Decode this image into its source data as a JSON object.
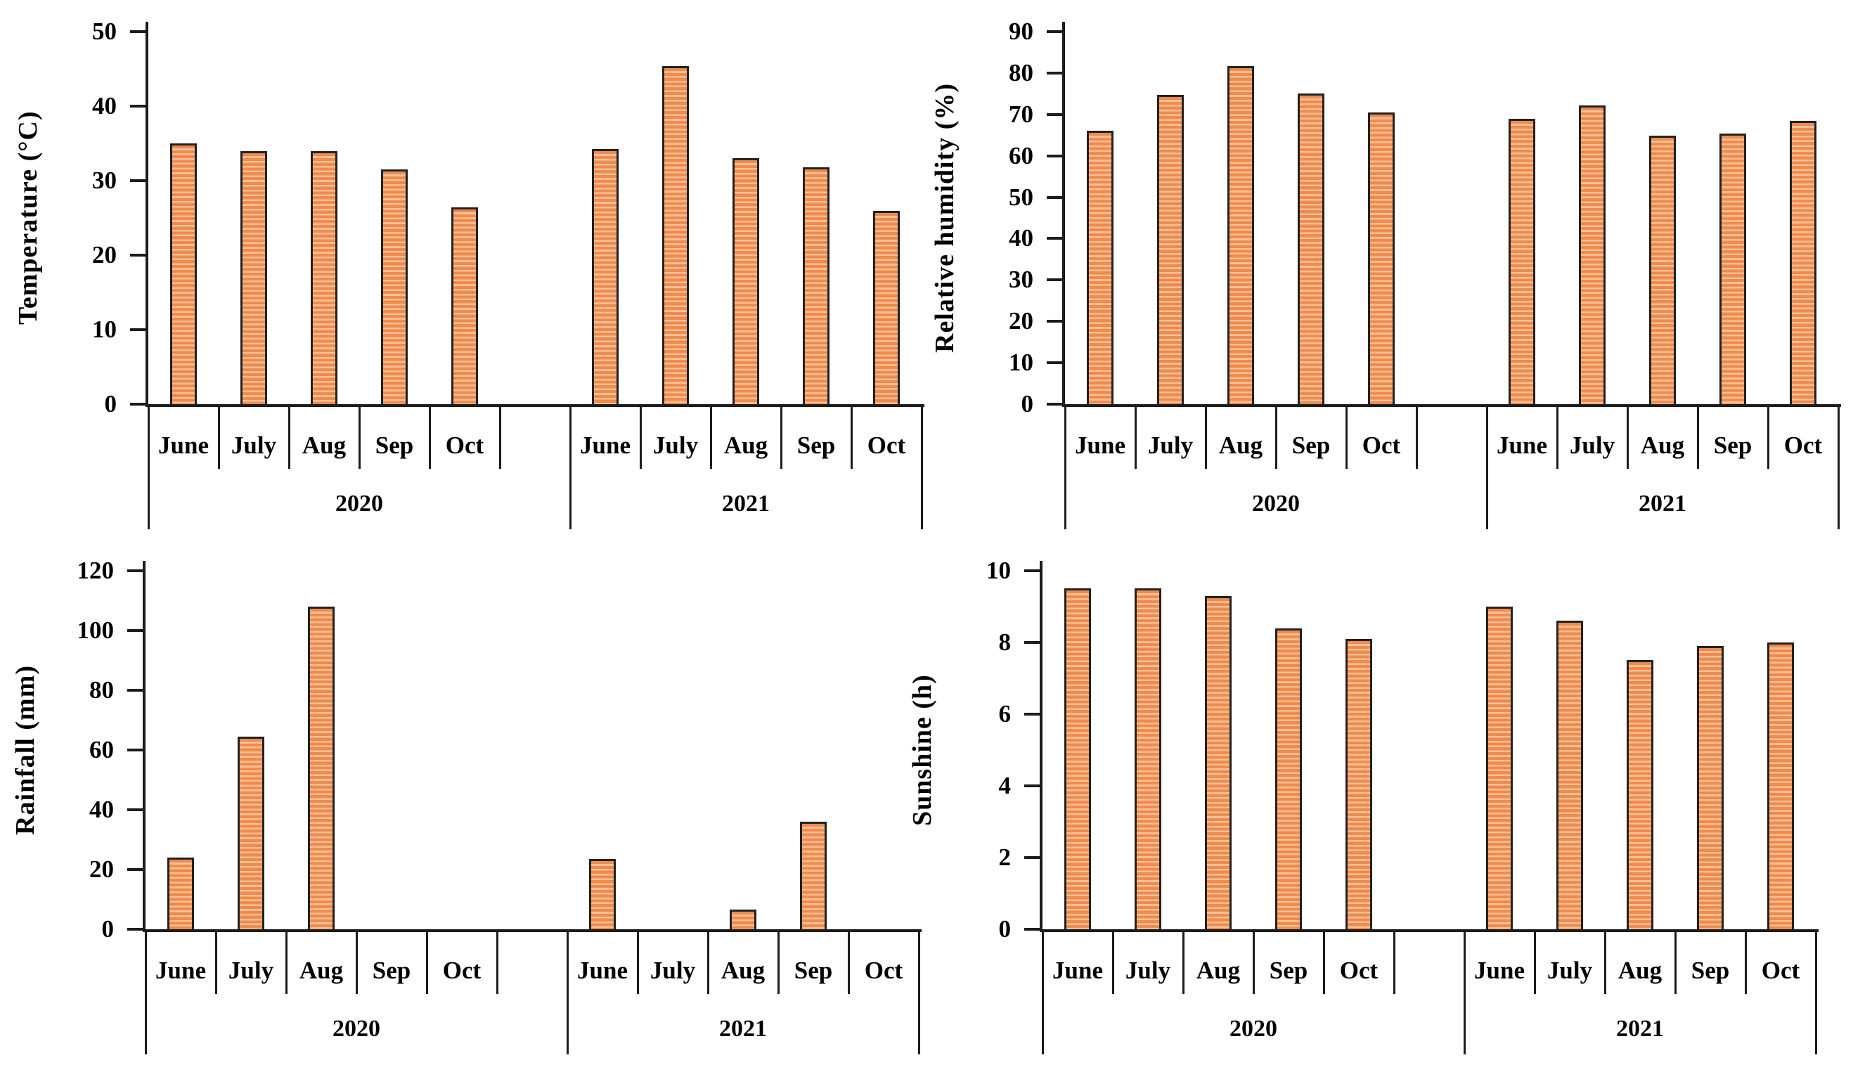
{
  "figure": {
    "background_color": "#FFFFFF",
    "bar_fill_color": "#EF8B4D",
    "bar_stripe_color": "#F7BF97",
    "bar_border_color": "#222222",
    "axis_color": "#1C1C1C",
    "text_color": "#000000",
    "pattern": "horizontal-stripes"
  },
  "labels": {
    "months": [
      "June",
      "July",
      "Aug",
      "Sep",
      "Oct"
    ],
    "years": [
      "2020",
      "2021"
    ]
  },
  "chart_data": [
    {
      "id": "temperature",
      "type": "bar",
      "title": "",
      "ylabel": "Temperature (°C)",
      "xlabel": "",
      "ylim": [
        0,
        50
      ],
      "yticks": [
        0,
        10,
        20,
        30,
        40,
        50
      ],
      "grid": false,
      "legend": false,
      "categories": [
        "June",
        "July",
        "Aug",
        "Sep",
        "Oct"
      ],
      "group_labels": [
        "2020",
        "2021"
      ],
      "series": [
        {
          "name": "2020",
          "values": [
            35,
            34,
            34,
            31.5,
            26.4
          ]
        },
        {
          "name": "2021",
          "values": [
            34.2,
            45.4,
            33,
            31.8,
            25.9
          ]
        }
      ]
    },
    {
      "id": "relative-humidity",
      "type": "bar",
      "title": "",
      "ylabel": "Relative humidity (%)",
      "xlabel": "",
      "ylim": [
        0,
        90
      ],
      "yticks": [
        0,
        10,
        20,
        30,
        40,
        50,
        60,
        70,
        80,
        90
      ],
      "grid": false,
      "legend": false,
      "categories": [
        "June",
        "July",
        "Aug",
        "Sep",
        "Oct"
      ],
      "group_labels": [
        "2020",
        "2021"
      ],
      "series": [
        {
          "name": "2020",
          "values": [
            66,
            74.7,
            81.7,
            75,
            70.4
          ]
        },
        {
          "name": "2021",
          "values": [
            69,
            72.2,
            64.8,
            65.4,
            68.5
          ]
        }
      ]
    },
    {
      "id": "rainfall",
      "type": "bar",
      "title": "",
      "ylabel": "Rainfall (mm)",
      "xlabel": "",
      "ylim": [
        0,
        120
      ],
      "yticks": [
        0,
        20,
        40,
        60,
        80,
        100,
        120
      ],
      "grid": false,
      "legend": false,
      "categories": [
        "June",
        "July",
        "Aug",
        "Sep",
        "Oct"
      ],
      "group_labels": [
        "2020",
        "2021"
      ],
      "series": [
        {
          "name": "2020",
          "values": [
            24,
            64.5,
            108,
            0,
            0
          ]
        },
        {
          "name": "2021",
          "values": [
            23.5,
            0,
            6.5,
            36,
            0
          ]
        }
      ]
    },
    {
      "id": "sunshine",
      "type": "bar",
      "title": "",
      "ylabel": "Sunshine (h)",
      "xlabel": "",
      "ylim": [
        0,
        10
      ],
      "yticks": [
        0,
        2,
        4,
        6,
        8,
        10
      ],
      "grid": false,
      "legend": false,
      "categories": [
        "June",
        "July",
        "Aug",
        "Sep",
        "Oct"
      ],
      "group_labels": [
        "2020",
        "2021"
      ],
      "series": [
        {
          "name": "2020",
          "values": [
            9.5,
            9.5,
            9.3,
            8.4,
            8.1
          ]
        },
        {
          "name": "2021",
          "values": [
            9,
            8.6,
            7.5,
            7.9,
            8
          ]
        }
      ]
    }
  ]
}
